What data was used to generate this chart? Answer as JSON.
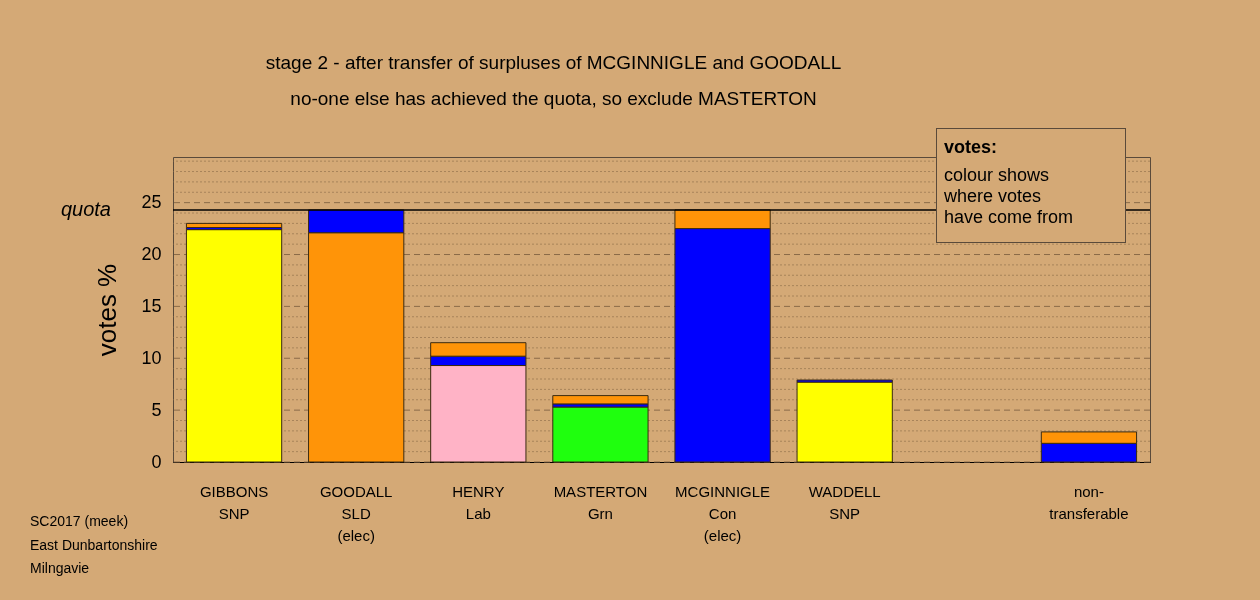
{
  "chart_data": {
    "type": "bar",
    "stacked": true,
    "title": "stage 2 - after transfer of surpluses of MCGINNIGLE and GOODALL",
    "subtitle": "no-one else has achieved the quota, so exclude MASTERTON",
    "ylabel": "votes %",
    "categories": [
      "GIBBONS\nSNP",
      "GOODALL\nSLD\n(elec)",
      "HENRY\nLab",
      "MASTERTON\nGrn",
      "MCGINNIGLE\nCon\n(elec)",
      "WADDELL\nSNP",
      null,
      "non-\ntransferable"
    ],
    "series": [
      {
        "colors": [
          "#ffff00",
          "#ff9408",
          "#ffb3c6",
          "#1fff0e",
          "#0000ff",
          "#ffff00",
          null,
          null
        ],
        "values": [
          22.4,
          22.1,
          9.3,
          5.3,
          22.5,
          7.7,
          null,
          null
        ]
      },
      {
        "color": "#0000ff",
        "values": [
          0.2,
          2.2,
          0.9,
          0.3,
          null,
          0.2,
          null,
          1.8
        ]
      },
      {
        "color": "#ff9408",
        "values": [
          0.4,
          null,
          1.3,
          0.8,
          1.8,
          null,
          null,
          1.1
        ]
      }
    ],
    "ylim": [
      0,
      29.4
    ],
    "yticks": [
      0,
      {
        "value": 1,
        "label": null
      },
      {
        "value": 2,
        "label": null
      },
      {
        "value": 3,
        "label": null
      },
      {
        "value": 4,
        "label": null
      },
      5,
      {
        "value": 6,
        "label": null
      },
      {
        "value": 7,
        "label": null
      },
      {
        "value": 8,
        "label": null
      },
      {
        "value": 9,
        "label": null
      },
      10,
      {
        "value": 11,
        "label": null
      },
      {
        "value": 12,
        "label": null
      },
      {
        "value": 13,
        "label": null
      },
      {
        "value": 14,
        "label": null
      },
      15,
      {
        "value": 16,
        "label": null
      },
      {
        "value": 17,
        "label": null
      },
      {
        "value": 18,
        "label": null
      },
      {
        "value": 19,
        "label": null
      },
      20,
      {
        "value": 21,
        "label": null
      },
      {
        "value": 22,
        "label": null
      },
      {
        "value": 23,
        "label": null
      },
      {
        "value": 24,
        "label": null
      },
      25,
      {
        "value": 26,
        "label": null
      },
      {
        "value": 27,
        "label": null
      },
      {
        "value": 28,
        "label": null
      },
      {
        "value": 29,
        "label": null
      }
    ],
    "grid": "y",
    "ref_lines": [
      {
        "axis": "y",
        "value": 24.3,
        "label": "quota"
      }
    ],
    "annotations": [
      "votes:",
      "colour shows\nwhere votes\nhave come from",
      "SC2017 (meek)\nEast Dunbartonshire\nMilngavie"
    ]
  }
}
